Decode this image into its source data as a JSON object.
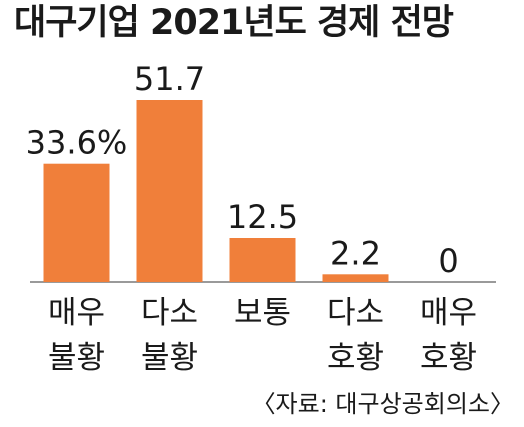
{
  "chart_data": {
    "type": "bar",
    "title": "대구기업 2021년도 경제 전망",
    "categories": [
      [
        "매우",
        "불황"
      ],
      [
        "다소",
        "불황"
      ],
      [
        "보통"
      ],
      [
        "다소",
        "호황"
      ],
      [
        "매우",
        "호황"
      ]
    ],
    "values": [
      33.6,
      51.7,
      12.5,
      2.2,
      0
    ],
    "value_labels": [
      "33.6%",
      "51.7",
      "12.5",
      "2.2",
      "0"
    ],
    "unit": "%",
    "ylim": [
      0,
      51.7
    ],
    "grid": false,
    "legend": "none",
    "source": "〈자료: 대구상공회의소〉"
  },
  "colors": {
    "bar": "#f07f3a",
    "axis": "#9a9a9a",
    "text": "#1a1a1a"
  }
}
